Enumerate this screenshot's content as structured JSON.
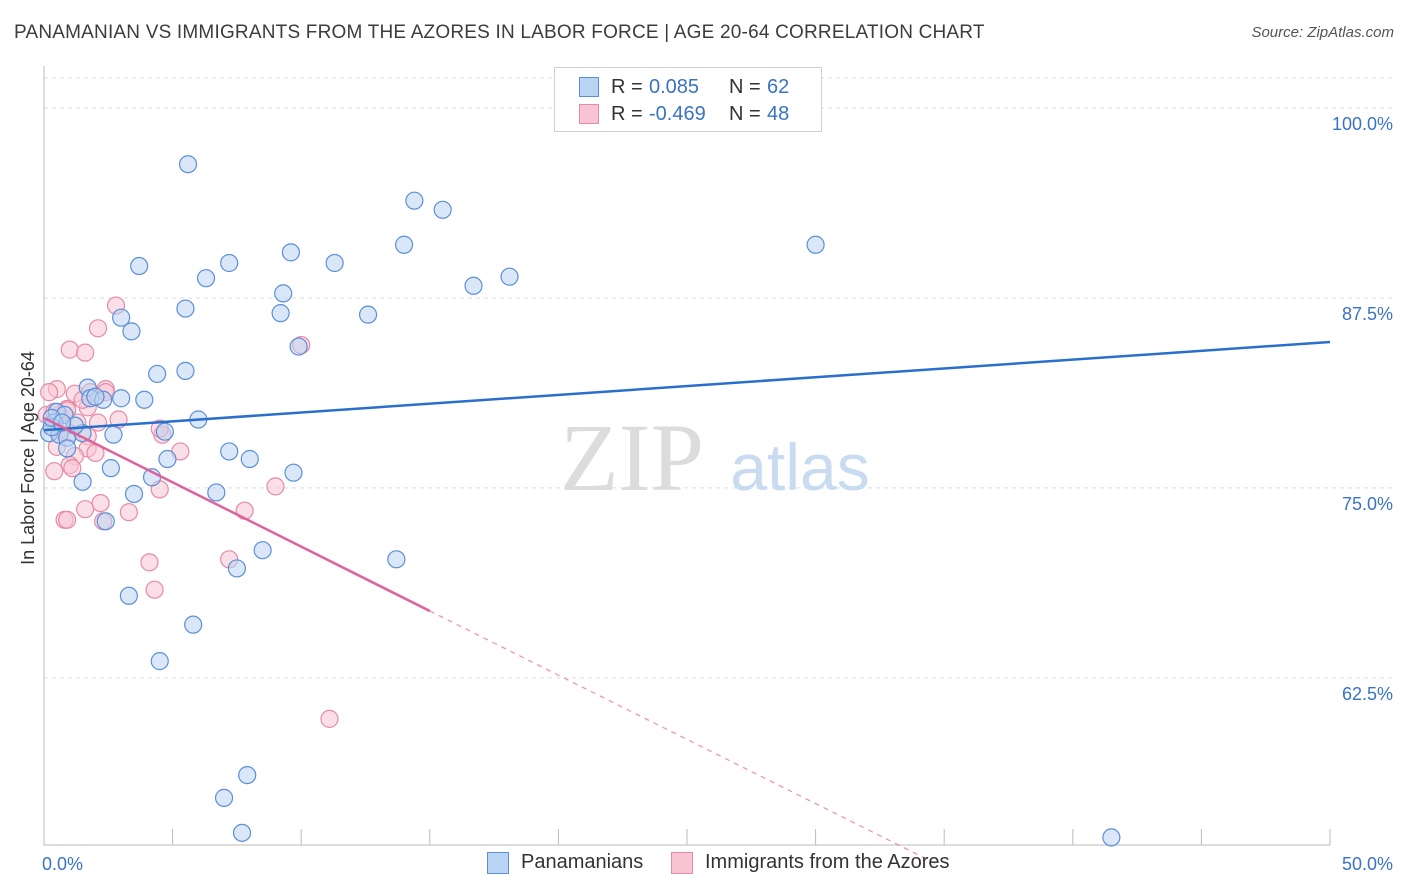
{
  "title": "PANAMANIAN VS IMMIGRANTS FROM THE AZORES IN LABOR FORCE | AGE 20-64 CORRELATION CHART",
  "source": "Source: ZipAtlas.com",
  "watermark": {
    "zip": "ZIP",
    "atlas": "atlas"
  },
  "legend": {
    "rows": [
      {
        "r_label": "R =",
        "r_value": "0.085",
        "n_label": "N =",
        "n_value": "62"
      },
      {
        "r_label": "R =",
        "r_value": "-0.469",
        "n_label": "N =",
        "n_value": "48"
      }
    ]
  },
  "bottom_legend": [
    "Panamanians",
    "Immigrants from the Azores"
  ],
  "colors": {
    "blue_fill": "#b9d3f2",
    "blue_stroke": "#5b8fd6",
    "blue_line": "#2a6fcc",
    "pink_fill": "#f8c4d4",
    "pink_stroke": "#e889a8",
    "pink_line": "#e0609a",
    "axis_text": "#3a73c6",
    "grid": "#dddddd"
  },
  "chart_data": {
    "type": "scatter",
    "title": "PANAMANIAN VS IMMIGRANTS FROM THE AZORES IN LABOR FORCE | AGE 20-64 CORRELATION CHART",
    "xlabel": "",
    "ylabel": "In Labor Force | Age 20-64",
    "xlim": [
      0,
      50
    ],
    "ylim": [
      51.5,
      102.5
    ],
    "x_tick_labels": [
      {
        "value": 0,
        "label": "0.0%"
      },
      {
        "value": 50,
        "label": "50.0%"
      }
    ],
    "x_tick_marks": [
      0,
      5,
      10,
      15,
      20,
      25,
      30,
      35,
      40,
      45,
      50
    ],
    "y_ticks": [
      {
        "value": 100,
        "label": "100.0%"
      },
      {
        "value": 87.5,
        "label": "87.5%"
      },
      {
        "value": 75,
        "label": "75.0%"
      },
      {
        "value": 62.5,
        "label": "62.5%"
      }
    ],
    "grid": true,
    "series": [
      {
        "name": "Panamanians",
        "color": "blue",
        "trend": {
          "x": [
            0,
            50
          ],
          "y": [
            78.8,
            84.6
          ],
          "dashed_beyond": null
        },
        "points": [
          [
            5.6,
            96.3
          ],
          [
            14.4,
            93.9
          ],
          [
            15.5,
            93.3
          ],
          [
            30.0,
            91.0
          ],
          [
            9.6,
            90.5
          ],
          [
            14.0,
            91.0
          ],
          [
            3.7,
            89.6
          ],
          [
            7.2,
            89.8
          ],
          [
            11.3,
            89.8
          ],
          [
            6.3,
            88.8
          ],
          [
            16.7,
            88.3
          ],
          [
            18.1,
            88.9
          ],
          [
            9.3,
            87.8
          ],
          [
            5.5,
            86.8
          ],
          [
            9.2,
            86.5
          ],
          [
            12.6,
            86.4
          ],
          [
            3.0,
            86.2
          ],
          [
            3.4,
            85.3
          ],
          [
            9.9,
            84.3
          ],
          [
            4.4,
            82.5
          ],
          [
            5.5,
            82.7
          ],
          [
            1.7,
            81.6
          ],
          [
            1.8,
            80.9
          ],
          [
            3.9,
            80.8
          ],
          [
            2.3,
            80.8
          ],
          [
            0.5,
            80.0
          ],
          [
            0.8,
            79.8
          ],
          [
            6.0,
            79.5
          ],
          [
            0.4,
            79.3
          ],
          [
            0.2,
            78.6
          ],
          [
            0.6,
            78.5
          ],
          [
            0.9,
            78.3
          ],
          [
            1.5,
            78.6
          ],
          [
            2.7,
            78.5
          ],
          [
            4.7,
            78.7
          ],
          [
            0.3,
            79.0
          ],
          [
            7.2,
            77.4
          ],
          [
            8.0,
            76.9
          ],
          [
            4.8,
            76.9
          ],
          [
            2.6,
            76.3
          ],
          [
            9.7,
            76.0
          ],
          [
            4.2,
            75.7
          ],
          [
            1.5,
            75.4
          ],
          [
            3.5,
            74.6
          ],
          [
            6.7,
            74.7
          ],
          [
            2.4,
            72.8
          ],
          [
            8.5,
            70.9
          ],
          [
            13.7,
            70.3
          ],
          [
            7.5,
            69.7
          ],
          [
            3.3,
            67.9
          ],
          [
            5.8,
            66.0
          ],
          [
            4.5,
            63.6
          ],
          [
            7.9,
            56.1
          ],
          [
            7.0,
            54.6
          ],
          [
            7.7,
            52.3
          ],
          [
            41.5,
            52.0
          ],
          [
            0.9,
            77.6
          ],
          [
            2.0,
            81.0
          ],
          [
            1.2,
            79.1
          ],
          [
            0.3,
            79.6
          ],
          [
            3.0,
            80.9
          ],
          [
            0.7,
            79.3
          ]
        ]
      },
      {
        "name": "Immigrants from the Azores",
        "color": "pink",
        "trend": {
          "x": [
            0,
            15
          ],
          "y": [
            79.6,
            66.9
          ],
          "dashed_to": [
            35,
            50.0
          ]
        },
        "points": [
          [
            2.8,
            87.0
          ],
          [
            2.1,
            85.5
          ],
          [
            1.0,
            84.1
          ],
          [
            1.6,
            83.9
          ],
          [
            10.0,
            84.4
          ],
          [
            0.5,
            81.5
          ],
          [
            0.2,
            81.3
          ],
          [
            1.2,
            81.2
          ],
          [
            2.4,
            81.5
          ],
          [
            1.8,
            81.3
          ],
          [
            2.4,
            81.3
          ],
          [
            0.9,
            80.2
          ],
          [
            0.6,
            79.8
          ],
          [
            1.7,
            80.3
          ],
          [
            0.1,
            79.8
          ],
          [
            1.3,
            79.3
          ],
          [
            2.1,
            79.3
          ],
          [
            0.4,
            78.9
          ],
          [
            1.0,
            78.6
          ],
          [
            1.7,
            78.4
          ],
          [
            4.6,
            78.5
          ],
          [
            0.5,
            77.7
          ],
          [
            1.7,
            77.6
          ],
          [
            1.2,
            77.1
          ],
          [
            2.0,
            77.3
          ],
          [
            5.3,
            77.4
          ],
          [
            1.0,
            76.5
          ],
          [
            1.1,
            76.3
          ],
          [
            0.4,
            76.1
          ],
          [
            9.0,
            75.1
          ],
          [
            4.5,
            74.9
          ],
          [
            2.2,
            74.0
          ],
          [
            1.6,
            73.6
          ],
          [
            3.3,
            73.4
          ],
          [
            7.8,
            73.5
          ],
          [
            0.8,
            72.9
          ],
          [
            0.9,
            72.9
          ],
          [
            2.3,
            72.8
          ],
          [
            7.2,
            70.3
          ],
          [
            4.1,
            70.1
          ],
          [
            4.3,
            68.3
          ],
          [
            11.1,
            59.8
          ],
          [
            0.4,
            80.0
          ],
          [
            2.9,
            79.5
          ],
          [
            0.7,
            78.9
          ],
          [
            1.5,
            80.8
          ],
          [
            4.5,
            78.9
          ],
          [
            0.9,
            80.1
          ]
        ]
      }
    ]
  }
}
